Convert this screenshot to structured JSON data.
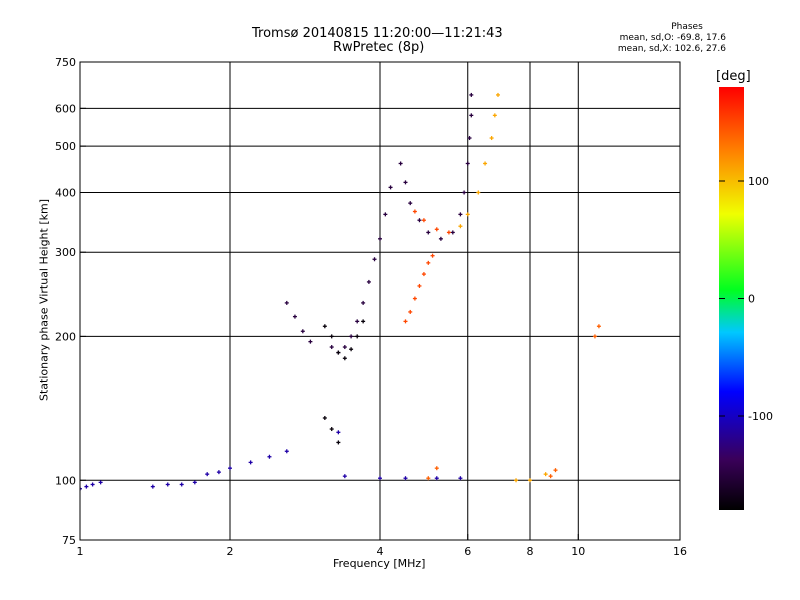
{
  "header": {
    "title_line1": "Tromsø 20140815 11:20:00—11:21:43",
    "title_line2": "RwPretec (8p)",
    "phases_heading": "Phases",
    "phases_o": "mean, sd,O: -69.8, 17.6",
    "phases_x": "mean, sd,X: 102.6, 27.6"
  },
  "chart_data": {
    "type": "scatter",
    "title": "Tromsø 20140815 11:20:00—11:21:43",
    "subtitle": "RwPretec (8p)",
    "xlabel": "Frequency [MHz]",
    "ylabel": "Stationary phase Virtual Height [km]",
    "xscale": "log",
    "yscale": "log",
    "xlim": [
      1,
      16
    ],
    "ylim": [
      75,
      750
    ],
    "x_ticks": [
      1,
      2,
      4,
      6,
      8,
      10,
      16
    ],
    "y_ticks": [
      75,
      100,
      200,
      300,
      400,
      500,
      600,
      750
    ],
    "grid_x": [
      2,
      4,
      6,
      8,
      10
    ],
    "grid_y": [
      100,
      200,
      300,
      400,
      500,
      600
    ],
    "colorbar": {
      "label": "[deg]",
      "range": [
        -180,
        180
      ],
      "ticks": [
        100,
        0,
        -100
      ],
      "colormap": "rainbow"
    },
    "series": [
      {
        "phase": -110,
        "points": [
          [
            1.0,
            96
          ],
          [
            1.03,
            97
          ],
          [
            1.06,
            98
          ],
          [
            1.1,
            99
          ],
          [
            1.4,
            97
          ],
          [
            1.5,
            98
          ],
          [
            1.6,
            98
          ],
          [
            1.7,
            99
          ],
          [
            1.8,
            103
          ],
          [
            1.9,
            104
          ],
          [
            2.0,
            106
          ],
          [
            2.2,
            109
          ],
          [
            2.4,
            112
          ],
          [
            2.6,
            115
          ],
          [
            3.3,
            126
          ],
          [
            3.4,
            102
          ],
          [
            4.0,
            101
          ],
          [
            4.5,
            101
          ],
          [
            5.2,
            101
          ],
          [
            5.8,
            101
          ]
        ]
      },
      {
        "phase": -150,
        "points": [
          [
            2.6,
            235
          ],
          [
            2.7,
            220
          ],
          [
            2.8,
            205
          ],
          [
            2.9,
            195
          ],
          [
            3.2,
            190
          ],
          [
            3.3,
            185
          ],
          [
            3.4,
            190
          ],
          [
            3.5,
            200
          ],
          [
            3.6,
            215
          ],
          [
            3.7,
            235
          ],
          [
            3.8,
            260
          ],
          [
            3.9,
            290
          ],
          [
            4.0,
            320
          ],
          [
            4.1,
            360
          ],
          [
            4.2,
            410
          ],
          [
            4.4,
            460
          ],
          [
            4.5,
            420
          ],
          [
            4.6,
            380
          ],
          [
            4.8,
            350
          ],
          [
            5.0,
            330
          ],
          [
            5.3,
            320
          ],
          [
            5.6,
            330
          ],
          [
            5.8,
            360
          ],
          [
            5.9,
            400
          ],
          [
            6.0,
            460
          ],
          [
            6.05,
            520
          ],
          [
            6.1,
            580
          ],
          [
            6.1,
            640
          ]
        ]
      },
      {
        "phase": -175,
        "points": [
          [
            3.1,
            210
          ],
          [
            3.2,
            200
          ],
          [
            3.3,
            185
          ],
          [
            3.4,
            180
          ],
          [
            3.5,
            188
          ],
          [
            3.6,
            200
          ],
          [
            3.7,
            215
          ],
          [
            3.1,
            135
          ],
          [
            3.2,
            128
          ],
          [
            3.3,
            120
          ]
        ]
      },
      {
        "phase": 150,
        "points": [
          [
            4.5,
            215
          ],
          [
            4.6,
            225
          ],
          [
            4.7,
            240
          ],
          [
            4.8,
            255
          ],
          [
            4.9,
            270
          ],
          [
            5.0,
            285
          ],
          [
            5.1,
            295
          ],
          [
            4.7,
            365
          ],
          [
            4.9,
            350
          ],
          [
            5.2,
            335
          ],
          [
            5.5,
            330
          ]
        ]
      },
      {
        "phase": 110,
        "points": [
          [
            5.8,
            340
          ],
          [
            6.0,
            360
          ],
          [
            6.3,
            400
          ],
          [
            6.5,
            460
          ],
          [
            6.7,
            520
          ],
          [
            6.8,
            580
          ],
          [
            6.9,
            640
          ],
          [
            7.5,
            100
          ],
          [
            8.0,
            100
          ],
          [
            8.6,
            103
          ]
        ]
      },
      {
        "phase": 140,
        "points": [
          [
            5.0,
            101
          ],
          [
            5.2,
            106
          ],
          [
            8.8,
            102
          ],
          [
            9.0,
            105
          ],
          [
            10.8,
            200
          ],
          [
            11.0,
            210
          ]
        ]
      }
    ]
  }
}
